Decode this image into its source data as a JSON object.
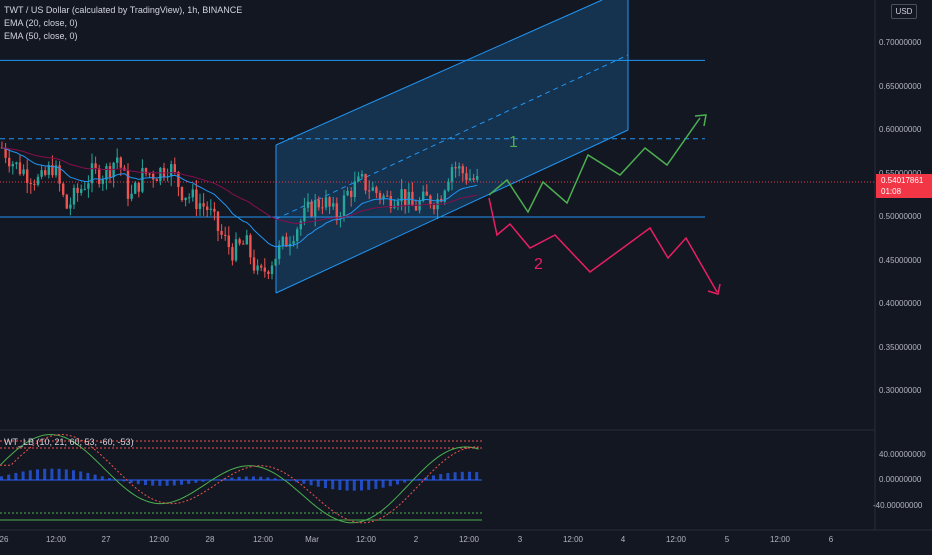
{
  "header": {
    "symbol_line": "TWT / US Dollar (calculated by TradingView), 1h, BINANCE",
    "ema20": "EMA (20, close, 0)",
    "ema50": "EMA (50, close, 0)"
  },
  "currency": "USD",
  "price_axis": {
    "ticks": [
      "0.70000000",
      "0.65000000",
      "0.60000000",
      "0.55000000",
      "0.50000000",
      "0.45000000",
      "0.40000000",
      "0.35000000",
      "0.30000000"
    ],
    "current_price": "0.54017861",
    "countdown": "01:08"
  },
  "oscillator": {
    "legend": "WT_LB (10, 21, 60, 53, -60, -53)",
    "ticks": [
      "40.00000000",
      "0.00000000",
      "-40.00000000"
    ]
  },
  "time_axis": [
    "26",
    "12:00",
    "27",
    "12:00",
    "28",
    "12:00",
    "Mar",
    "12:00",
    "2",
    "12:00",
    "3",
    "12:00",
    "4",
    "12:00",
    "5",
    "12:00",
    "6"
  ],
  "scenario_labels": {
    "path1": "1",
    "path2": "2"
  },
  "colors": {
    "background": "#131722",
    "up_candle": "#26a69a",
    "down_candle": "#ef5350",
    "channel": "#2196f3",
    "scenario1": "#4caf50",
    "scenario2": "#e91e63",
    "current_price": "#f23645"
  },
  "chart_data": {
    "type": "candlestick",
    "interval": "1h",
    "y_range": [
      0.27,
      0.75
    ],
    "candles_close_sample": [
      0.58,
      0.56,
      0.55,
      0.54,
      0.56,
      0.51,
      0.53,
      0.55,
      0.55,
      0.57,
      0.52,
      0.55,
      0.55,
      0.56,
      0.53,
      0.52,
      0.51,
      0.48,
      0.46,
      0.47,
      0.43,
      0.45,
      0.47,
      0.49,
      0.51,
      0.52,
      0.5,
      0.53,
      0.54,
      0.53,
      0.52,
      0.53,
      0.51,
      0.52,
      0.52,
      0.56,
      0.55,
      0.54
    ],
    "horizontal_levels": [
      0.68,
      0.59,
      0.5
    ],
    "current_price": 0.54017861,
    "indicators": [
      "EMA 20",
      "EMA 50",
      "WT_LB"
    ]
  }
}
